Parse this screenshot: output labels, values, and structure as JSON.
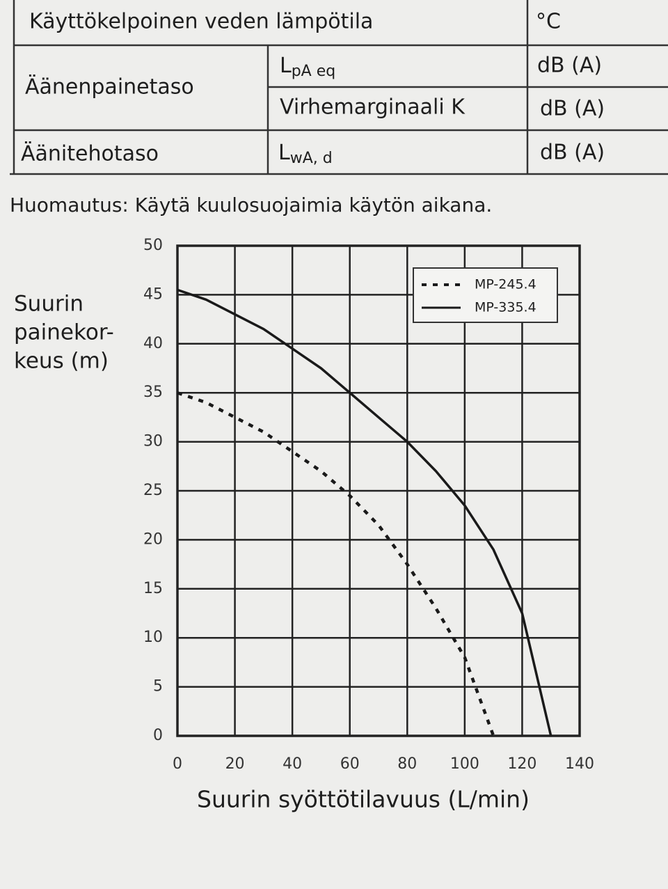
{
  "table": {
    "rows": [
      [
        "Käyttökelpoinen veden lämpötila",
        "°C"
      ],
      [
        "Äänenpainetaso",
        {
          "main": "L",
          "sub": "pA eq"
        },
        "dB (A)"
      ],
      [
        "Virhemarginaali K",
        "dB (A)"
      ],
      [
        "Äänitehotaso",
        {
          "main": "L",
          "sub": "wA, d"
        },
        "dB (A)"
      ]
    ]
  },
  "note": "Huomautus: Käytä kuulosuojaimia käytön aikana.",
  "chart_data": {
    "type": "line",
    "y_label": [
      "Suurin",
      "painekor-",
      "keus (m)"
    ],
    "x_label": "Suurin syöttötilavuus (L/min)",
    "x": [
      0,
      10,
      20,
      30,
      40,
      50,
      60,
      70,
      80,
      90,
      100,
      110,
      120,
      130
    ],
    "series": [
      {
        "name": "MP-245.4",
        "color": "#1a1a1a",
        "dash": true,
        "values": [
          35,
          34,
          32.5,
          31,
          29,
          27,
          24.5,
          21.5,
          17.5,
          13,
          8,
          0,
          null,
          null
        ]
      },
      {
        "name": "MP-335.4",
        "color": "#1a1a1a",
        "dash": false,
        "values": [
          45.5,
          44.5,
          43,
          41.5,
          39.5,
          37.5,
          35,
          32.5,
          30,
          27,
          23.5,
          19,
          12.5,
          0
        ]
      }
    ],
    "xlim": [
      0,
      140
    ],
    "xticks": [
      0,
      20,
      40,
      60,
      80,
      100,
      120,
      140
    ],
    "ylim": [
      0,
      50
    ],
    "yticks": [
      0,
      5,
      10,
      15,
      20,
      25,
      30,
      35,
      40,
      45,
      50
    ],
    "grid": true,
    "legend": "upper right"
  }
}
